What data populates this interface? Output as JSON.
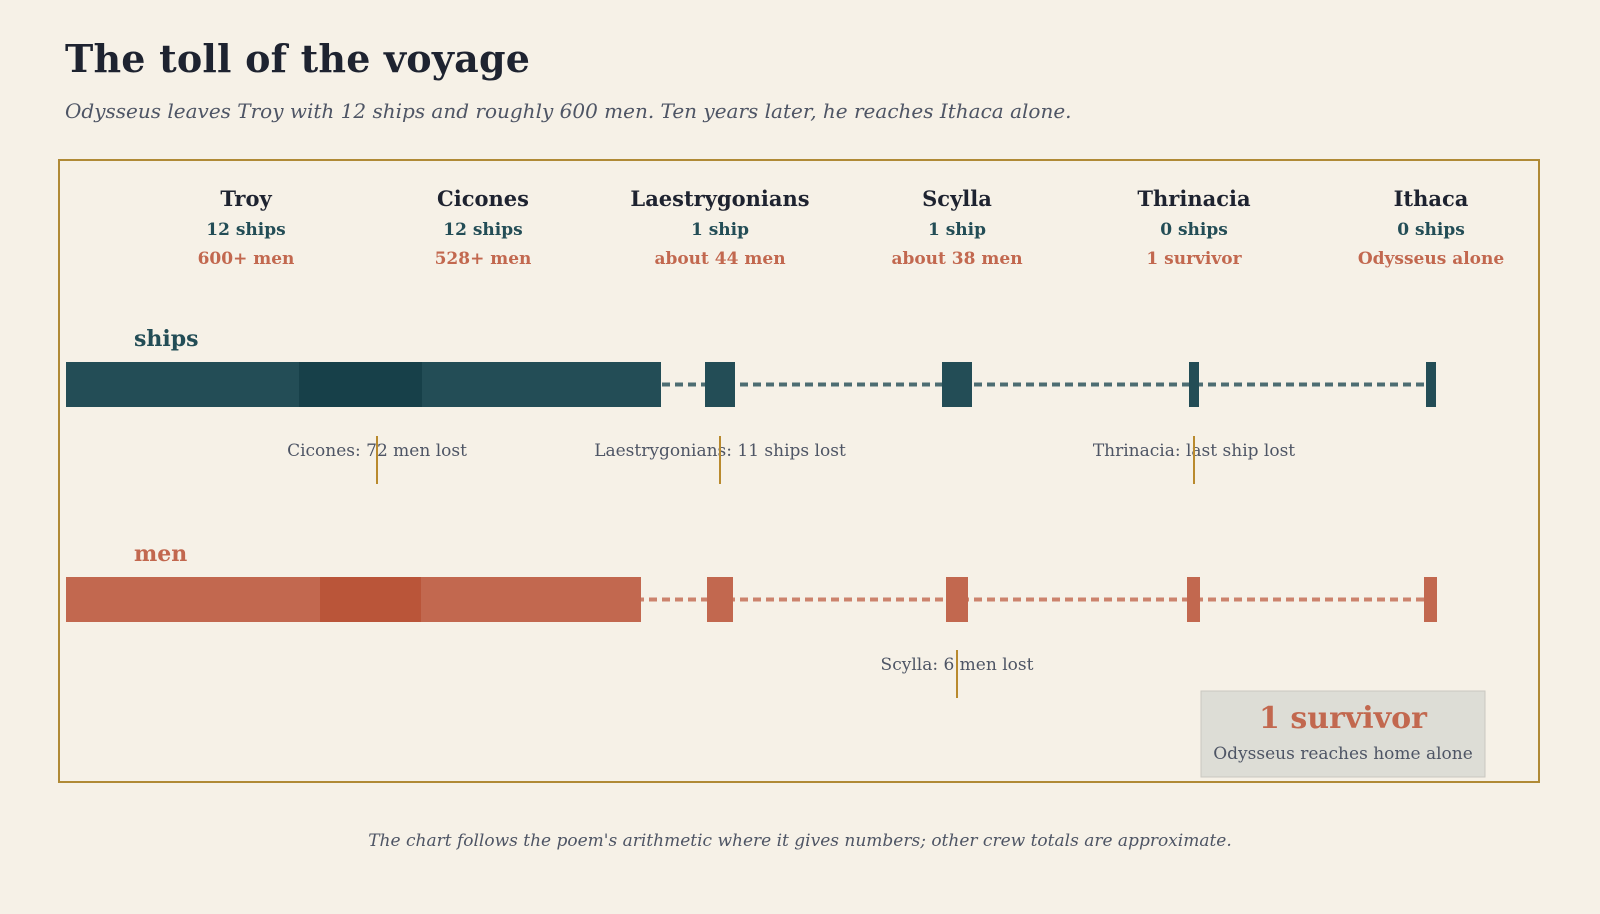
{
  "header": {
    "title": "The toll of the voyage",
    "subtitle": "Odysseus leaves Troy with 12 ships and roughly 600 men. Ten years later, he reaches Ithaca alone."
  },
  "footer": {
    "note": "The chart follows the poem's arithmetic where it gives numbers; other crew totals are approximate."
  },
  "chart_data": {
    "type": "bar",
    "stops": [
      {
        "name": "Troy",
        "ships_label": "12 ships",
        "men_label": "600+ men",
        "ships": 12,
        "men": 600
      },
      {
        "name": "Cicones",
        "ships_label": "12 ships",
        "men_label": "528+ men",
        "ships": 12,
        "men": 528
      },
      {
        "name": "Laestrygonians",
        "ships_label": "1 ship",
        "men_label": "about 44 men",
        "ships": 1,
        "men": 44
      },
      {
        "name": "Scylla",
        "ships_label": "1 ship",
        "men_label": "about 38 men",
        "ships": 1,
        "men": 38
      },
      {
        "name": "Thrinacia",
        "ships_label": "0 ships",
        "men_label": "1 survivor",
        "ships": 0,
        "men": 1
      },
      {
        "name": "Ithaca",
        "ships_label": "0 ships",
        "men_label": "Odysseus alone",
        "ships": 0,
        "men": 1
      }
    ],
    "series": [
      {
        "name": "ships",
        "color": "#234d56",
        "dark": "#173f49"
      },
      {
        "name": "men",
        "color": "#c2684f",
        "dark": "#b95438"
      }
    ],
    "annotations": [
      {
        "series": "ships",
        "stop": "Cicones",
        "text": "Cicones: 72 men lost",
        "line_at": "Troy-Cicones"
      },
      {
        "series": "ships",
        "stop": "Laestrygonians",
        "text": "Laestrygonians: 11 ships lost",
        "line_at": "Laestrygonians"
      },
      {
        "series": "ships",
        "stop": "Thrinacia",
        "text": "Thrinacia: last ship lost",
        "line_at": "Thrinacia"
      },
      {
        "series": "men",
        "stop": "Scylla",
        "text": "Scylla: 6 men lost",
        "line_at": "Scylla"
      }
    ],
    "callout": {
      "headline": "1 survivor",
      "caption": "Odysseus reaches home alone"
    },
    "colors": {
      "frame": "#b08a36",
      "annotation_line": "#b98a2e",
      "callout_bg": "#ddddd6",
      "title_text": "#1e2330",
      "muted_text": "#4e5565"
    }
  }
}
